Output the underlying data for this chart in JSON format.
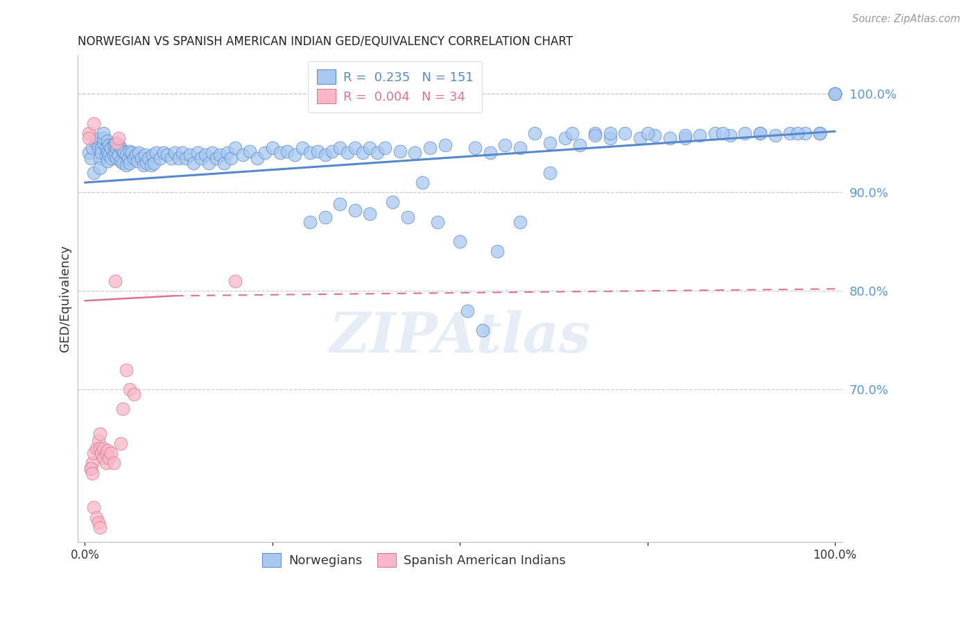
{
  "title": "NORWEGIAN VS SPANISH AMERICAN INDIAN GED/EQUIVALENCY CORRELATION CHART",
  "source_text": "Source: ZipAtlas.com",
  "ylabel": "GED/Equivalency",
  "watermark": "ZIPAtlas",
  "xlim": [
    -0.01,
    1.01
  ],
  "ylim": [
    0.545,
    1.04
  ],
  "yticks": [
    0.7,
    0.8,
    0.9,
    1.0
  ],
  "ytick_labels": [
    "70.0%",
    "80.0%",
    "90.0%",
    "100.0%"
  ],
  "xticks": [
    0.0,
    0.25,
    0.5,
    0.75,
    1.0
  ],
  "xtick_labels": [
    "0.0%",
    "",
    "",
    "",
    "100.0%"
  ],
  "blue_R": 0.235,
  "blue_N": 151,
  "pink_R": 0.004,
  "pink_N": 34,
  "blue_color": "#A8C8F0",
  "blue_edge_color": "#5588CC",
  "pink_color": "#F8B8C8",
  "pink_edge_color": "#E07090",
  "background_color": "#FFFFFF",
  "title_color": "#222222",
  "right_label_color": "#5599DD",
  "blue_legend_label": "Norwegians",
  "pink_legend_label": "Spanish American Indians",
  "blue_scatter_x": [
    0.005,
    0.008,
    0.01,
    0.012,
    0.015,
    0.015,
    0.018,
    0.02,
    0.02,
    0.022,
    0.022,
    0.025,
    0.025,
    0.025,
    0.028,
    0.028,
    0.03,
    0.03,
    0.03,
    0.032,
    0.032,
    0.035,
    0.035,
    0.038,
    0.038,
    0.04,
    0.04,
    0.042,
    0.042,
    0.045,
    0.045,
    0.048,
    0.048,
    0.05,
    0.05,
    0.052,
    0.055,
    0.055,
    0.058,
    0.06,
    0.06,
    0.062,
    0.065,
    0.068,
    0.07,
    0.072,
    0.075,
    0.078,
    0.08,
    0.082,
    0.085,
    0.088,
    0.09,
    0.092,
    0.095,
    0.1,
    0.105,
    0.11,
    0.115,
    0.12,
    0.125,
    0.13,
    0.135,
    0.14,
    0.145,
    0.15,
    0.155,
    0.16,
    0.165,
    0.17,
    0.175,
    0.18,
    0.185,
    0.19,
    0.195,
    0.2,
    0.21,
    0.22,
    0.23,
    0.24,
    0.25,
    0.26,
    0.27,
    0.28,
    0.29,
    0.3,
    0.31,
    0.32,
    0.33,
    0.34,
    0.35,
    0.36,
    0.37,
    0.38,
    0.39,
    0.4,
    0.42,
    0.44,
    0.46,
    0.48,
    0.5,
    0.52,
    0.54,
    0.56,
    0.58,
    0.6,
    0.62,
    0.64,
    0.66,
    0.68,
    0.7,
    0.72,
    0.74,
    0.76,
    0.78,
    0.8,
    0.82,
    0.84,
    0.86,
    0.88,
    0.9,
    0.92,
    0.94,
    0.96,
    0.98,
    1.0,
    1.0,
    1.0,
    0.65,
    0.68,
    0.7,
    0.55,
    0.58,
    0.62,
    0.75,
    0.8,
    0.85,
    0.9,
    0.95,
    0.98,
    0.51,
    0.53,
    0.47,
    0.45,
    0.43,
    0.41,
    0.38,
    0.36,
    0.34,
    0.32,
    0.3
  ],
  "blue_scatter_y": [
    0.94,
    0.935,
    0.945,
    0.92,
    0.95,
    0.955,
    0.945,
    0.935,
    0.925,
    0.945,
    0.94,
    0.95,
    0.955,
    0.96,
    0.945,
    0.938,
    0.952,
    0.942,
    0.932,
    0.948,
    0.938,
    0.945,
    0.935,
    0.948,
    0.938,
    0.95,
    0.94,
    0.945,
    0.935,
    0.948,
    0.938,
    0.945,
    0.932,
    0.942,
    0.93,
    0.94,
    0.938,
    0.928,
    0.935,
    0.942,
    0.93,
    0.94,
    0.935,
    0.938,
    0.932,
    0.94,
    0.935,
    0.928,
    0.938,
    0.93,
    0.935,
    0.928,
    0.938,
    0.93,
    0.94,
    0.935,
    0.94,
    0.938,
    0.935,
    0.94,
    0.935,
    0.94,
    0.935,
    0.938,
    0.93,
    0.94,
    0.935,
    0.938,
    0.93,
    0.94,
    0.935,
    0.938,
    0.93,
    0.94,
    0.935,
    0.945,
    0.938,
    0.942,
    0.935,
    0.94,
    0.945,
    0.94,
    0.942,
    0.938,
    0.945,
    0.94,
    0.942,
    0.938,
    0.942,
    0.945,
    0.94,
    0.945,
    0.94,
    0.945,
    0.94,
    0.945,
    0.942,
    0.94,
    0.945,
    0.948,
    0.85,
    0.945,
    0.94,
    0.948,
    0.945,
    0.96,
    0.95,
    0.955,
    0.948,
    0.96,
    0.955,
    0.96,
    0.955,
    0.958,
    0.955,
    0.955,
    0.958,
    0.96,
    0.958,
    0.96,
    0.96,
    0.958,
    0.96,
    0.96,
    0.96,
    1.0,
    1.0,
    1.0,
    0.96,
    0.958,
    0.96,
    0.84,
    0.87,
    0.92,
    0.96,
    0.958,
    0.96,
    0.96,
    0.96,
    0.96,
    0.78,
    0.76,
    0.87,
    0.91,
    0.875,
    0.89,
    0.878,
    0.882,
    0.888,
    0.875,
    0.87
  ],
  "pink_scatter_x": [
    0.005,
    0.005,
    0.008,
    0.01,
    0.012,
    0.015,
    0.018,
    0.02,
    0.02,
    0.022,
    0.025,
    0.025,
    0.028,
    0.028,
    0.03,
    0.032,
    0.035,
    0.038,
    0.04,
    0.042,
    0.045,
    0.048,
    0.05,
    0.055,
    0.06,
    0.065,
    0.008,
    0.01,
    0.012,
    0.015,
    0.018,
    0.02,
    0.2,
    0.012
  ],
  "pink_scatter_y": [
    0.96,
    0.955,
    0.62,
    0.625,
    0.635,
    0.64,
    0.648,
    0.655,
    0.64,
    0.635,
    0.64,
    0.63,
    0.635,
    0.625,
    0.638,
    0.63,
    0.635,
    0.625,
    0.81,
    0.95,
    0.955,
    0.645,
    0.68,
    0.72,
    0.7,
    0.695,
    0.62,
    0.615,
    0.58,
    0.57,
    0.565,
    0.56,
    0.81,
    0.97
  ],
  "blue_trend_x0": 0.0,
  "blue_trend_y0": 0.91,
  "blue_trend_x1": 1.0,
  "blue_trend_y1": 0.962,
  "pink_trend_solid_x0": 0.0,
  "pink_trend_solid_y0": 0.79,
  "pink_trend_solid_x1": 0.12,
  "pink_trend_solid_y1": 0.795,
  "pink_trend_dash_x0": 0.12,
  "pink_trend_dash_y0": 0.795,
  "pink_trend_dash_x1": 1.0,
  "pink_trend_dash_y1": 0.802
}
